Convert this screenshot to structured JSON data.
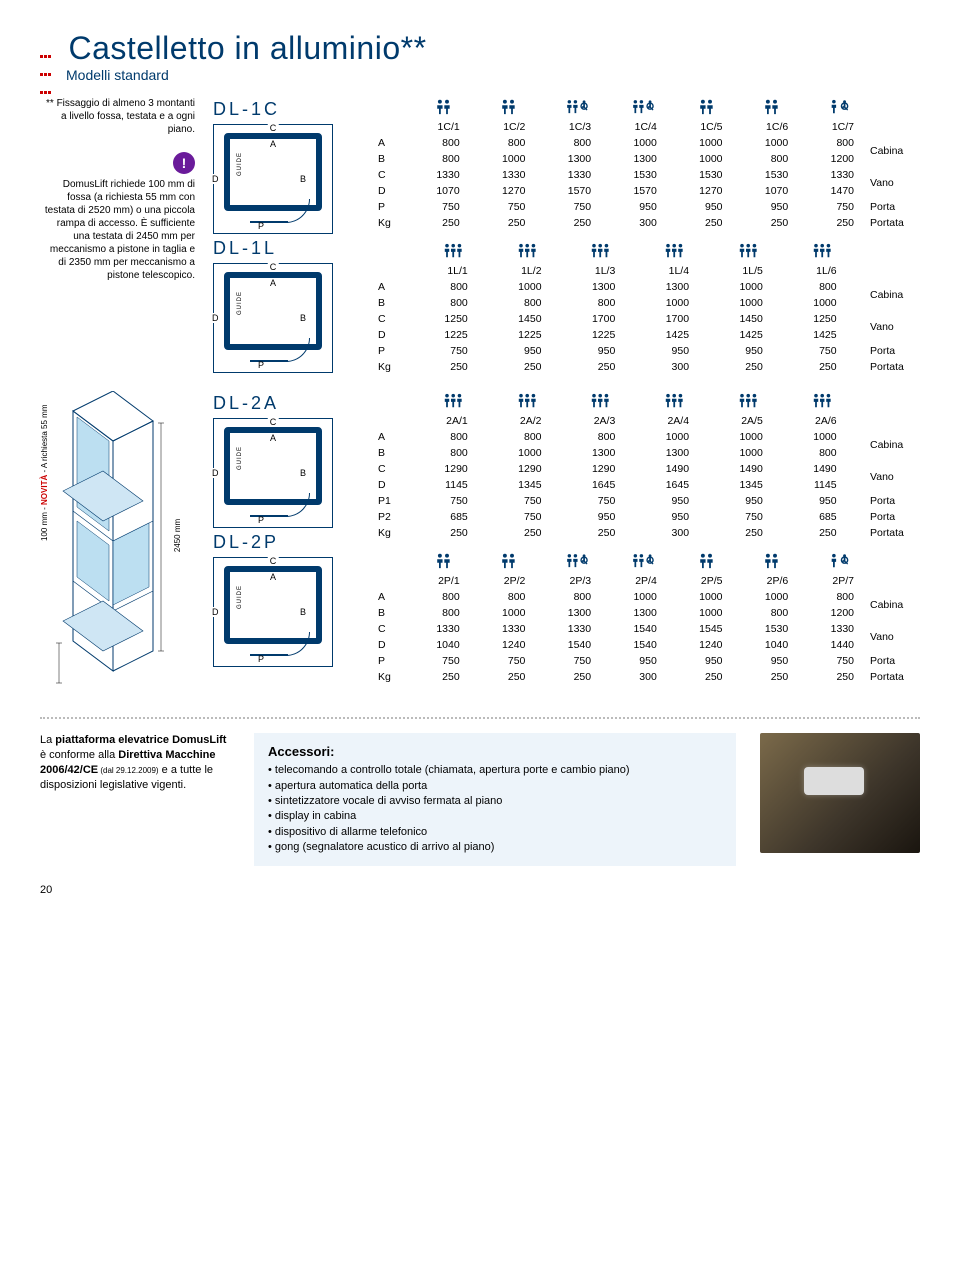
{
  "colors": {
    "brand": "#003a6c",
    "accent": "#c00000",
    "purple": "#6a1b9a",
    "panel": "#edf4fa"
  },
  "header": {
    "title": "Castelletto in alluminio",
    "suffix": "**",
    "subtitle": "Modelli standard"
  },
  "note1": "** Fissaggio di almeno 3 montanti a livello fossa, testata e a ogni piano.",
  "note2": "DomusLift richiede 100 mm di fossa (a richiesta 55 mm con testata di 2520 mm) o una piccola rampa di accesso. È sufficiente una testata di 2450 mm per meccanismo a pistone in taglia e di 2350 mm per meccanismo a pistone telescopico.",
  "models": [
    {
      "code": "DL-1C",
      "cols": [
        "1C/1",
        "1C/2",
        "1C/3",
        "1C/4",
        "1C/5",
        "1C/6",
        "1C/7"
      ],
      "icons": [
        "pp",
        "pp",
        "ppw",
        "ppw",
        "pp",
        "pp",
        "pw"
      ],
      "rows": [
        {
          "k": "A",
          "v": [
            800,
            800,
            800,
            1000,
            1000,
            1000,
            800
          ],
          "g": "Cabina"
        },
        {
          "k": "B",
          "v": [
            800,
            1000,
            1300,
            1300,
            1000,
            800,
            1200
          ],
          "g": "Cabina"
        },
        {
          "k": "C",
          "v": [
            1330,
            1330,
            1330,
            1530,
            1530,
            1530,
            1330
          ],
          "g": "Vano"
        },
        {
          "k": "D",
          "v": [
            1070,
            1270,
            1570,
            1570,
            1270,
            1070,
            1470
          ],
          "g": "Vano"
        },
        {
          "k": "P",
          "v": [
            750,
            750,
            750,
            950,
            950,
            950,
            750
          ],
          "t": "Porta"
        },
        {
          "k": "Kg",
          "v": [
            250,
            250,
            250,
            300,
            250,
            250,
            250
          ],
          "t": "Portata"
        }
      ]
    },
    {
      "code": "DL-1L",
      "cols": [
        "1L/1",
        "1L/2",
        "1L/3",
        "1L/4",
        "1L/5",
        "1L/6"
      ],
      "icons": [
        "ppp",
        "ppp",
        "ppp",
        "ppp",
        "ppp",
        "ppp"
      ],
      "rows": [
        {
          "k": "A",
          "v": [
            800,
            1000,
            1300,
            1300,
            1000,
            800
          ],
          "g": "Cabina"
        },
        {
          "k": "B",
          "v": [
            800,
            800,
            800,
            1000,
            1000,
            1000
          ],
          "g": "Cabina"
        },
        {
          "k": "C",
          "v": [
            1250,
            1450,
            1700,
            1700,
            1450,
            1250
          ],
          "g": "Vano"
        },
        {
          "k": "D",
          "v": [
            1225,
            1225,
            1225,
            1425,
            1425,
            1425
          ],
          "g": "Vano"
        },
        {
          "k": "P",
          "v": [
            750,
            950,
            950,
            950,
            950,
            750
          ],
          "t": "Porta"
        },
        {
          "k": "Kg",
          "v": [
            250,
            250,
            250,
            300,
            250,
            250
          ],
          "t": "Portata"
        }
      ]
    },
    {
      "code": "DL-2A",
      "cols": [
        "2A/1",
        "2A/2",
        "2A/3",
        "2A/4",
        "2A/5",
        "2A/6"
      ],
      "icons": [
        "ppp",
        "ppp",
        "ppp",
        "ppp",
        "ppp",
        "ppp"
      ],
      "rows": [
        {
          "k": "A",
          "v": [
            800,
            800,
            800,
            1000,
            1000,
            1000
          ],
          "g": "Cabina"
        },
        {
          "k": "B",
          "v": [
            800,
            1000,
            1300,
            1300,
            1000,
            800
          ],
          "g": "Cabina"
        },
        {
          "k": "C",
          "v": [
            1290,
            1290,
            1290,
            1490,
            1490,
            1490
          ],
          "g": "Vano"
        },
        {
          "k": "D",
          "v": [
            1145,
            1345,
            1645,
            1645,
            1345,
            1145
          ],
          "g": "Vano"
        },
        {
          "k": "P1",
          "v": [
            750,
            750,
            750,
            950,
            950,
            950
          ],
          "t": "Porta"
        },
        {
          "k": "P2",
          "v": [
            685,
            750,
            950,
            950,
            750,
            685
          ],
          "t": "Porta"
        },
        {
          "k": "Kg",
          "v": [
            250,
            250,
            250,
            300,
            250,
            250
          ],
          "t": "Portata"
        }
      ]
    },
    {
      "code": "DL-2P",
      "cols": [
        "2P/1",
        "2P/2",
        "2P/3",
        "2P/4",
        "2P/5",
        "2P/6",
        "2P/7"
      ],
      "icons": [
        "pp",
        "pp",
        "ppw",
        "ppw",
        "pp",
        "pp",
        "pw"
      ],
      "rows": [
        {
          "k": "A",
          "v": [
            800,
            800,
            800,
            1000,
            1000,
            1000,
            800
          ],
          "g": "Cabina"
        },
        {
          "k": "B",
          "v": [
            800,
            1000,
            1300,
            1300,
            1000,
            800,
            1200
          ],
          "g": "Cabina"
        },
        {
          "k": "C",
          "v": [
            1330,
            1330,
            1330,
            1540,
            1545,
            1530,
            1330
          ],
          "g": "Vano"
        },
        {
          "k": "D",
          "v": [
            1040,
            1240,
            1540,
            1540,
            1240,
            1040,
            1440
          ],
          "g": "Vano"
        },
        {
          "k": "P",
          "v": [
            750,
            750,
            750,
            950,
            950,
            950,
            750
          ],
          "t": "Porta"
        },
        {
          "k": "Kg",
          "v": [
            250,
            250,
            250,
            300,
            250,
            250,
            250
          ],
          "t": "Portata"
        }
      ]
    }
  ],
  "iso": {
    "h_label": "2450 mm",
    "v_label_prefix": "100 mm - ",
    "v_label_highlight": "NOVITÀ",
    "v_label_suffix": " - A richiesta 55 mm"
  },
  "compliance": {
    "pre": "La ",
    "bold1": "piattaforma elevatrice DomusLift",
    "mid": " è conforme alla ",
    "bold2": "Direttiva Macchine 2006/42/CE",
    "small": " (dal 29.12.2009)",
    "post": " e a tutte le disposizioni legislative vigenti."
  },
  "accessories": {
    "title": "Accessori:",
    "items": [
      "telecomando a controllo totale (chiamata, apertura porte e cambio piano)",
      "apertura automatica della porta",
      "sintetizzatore vocale di avviso fermata al piano",
      "display in cabina",
      "dispositivo di allarme telefonico",
      "gong (segnalatore acustico di arrivo al piano)"
    ]
  },
  "page": "20"
}
